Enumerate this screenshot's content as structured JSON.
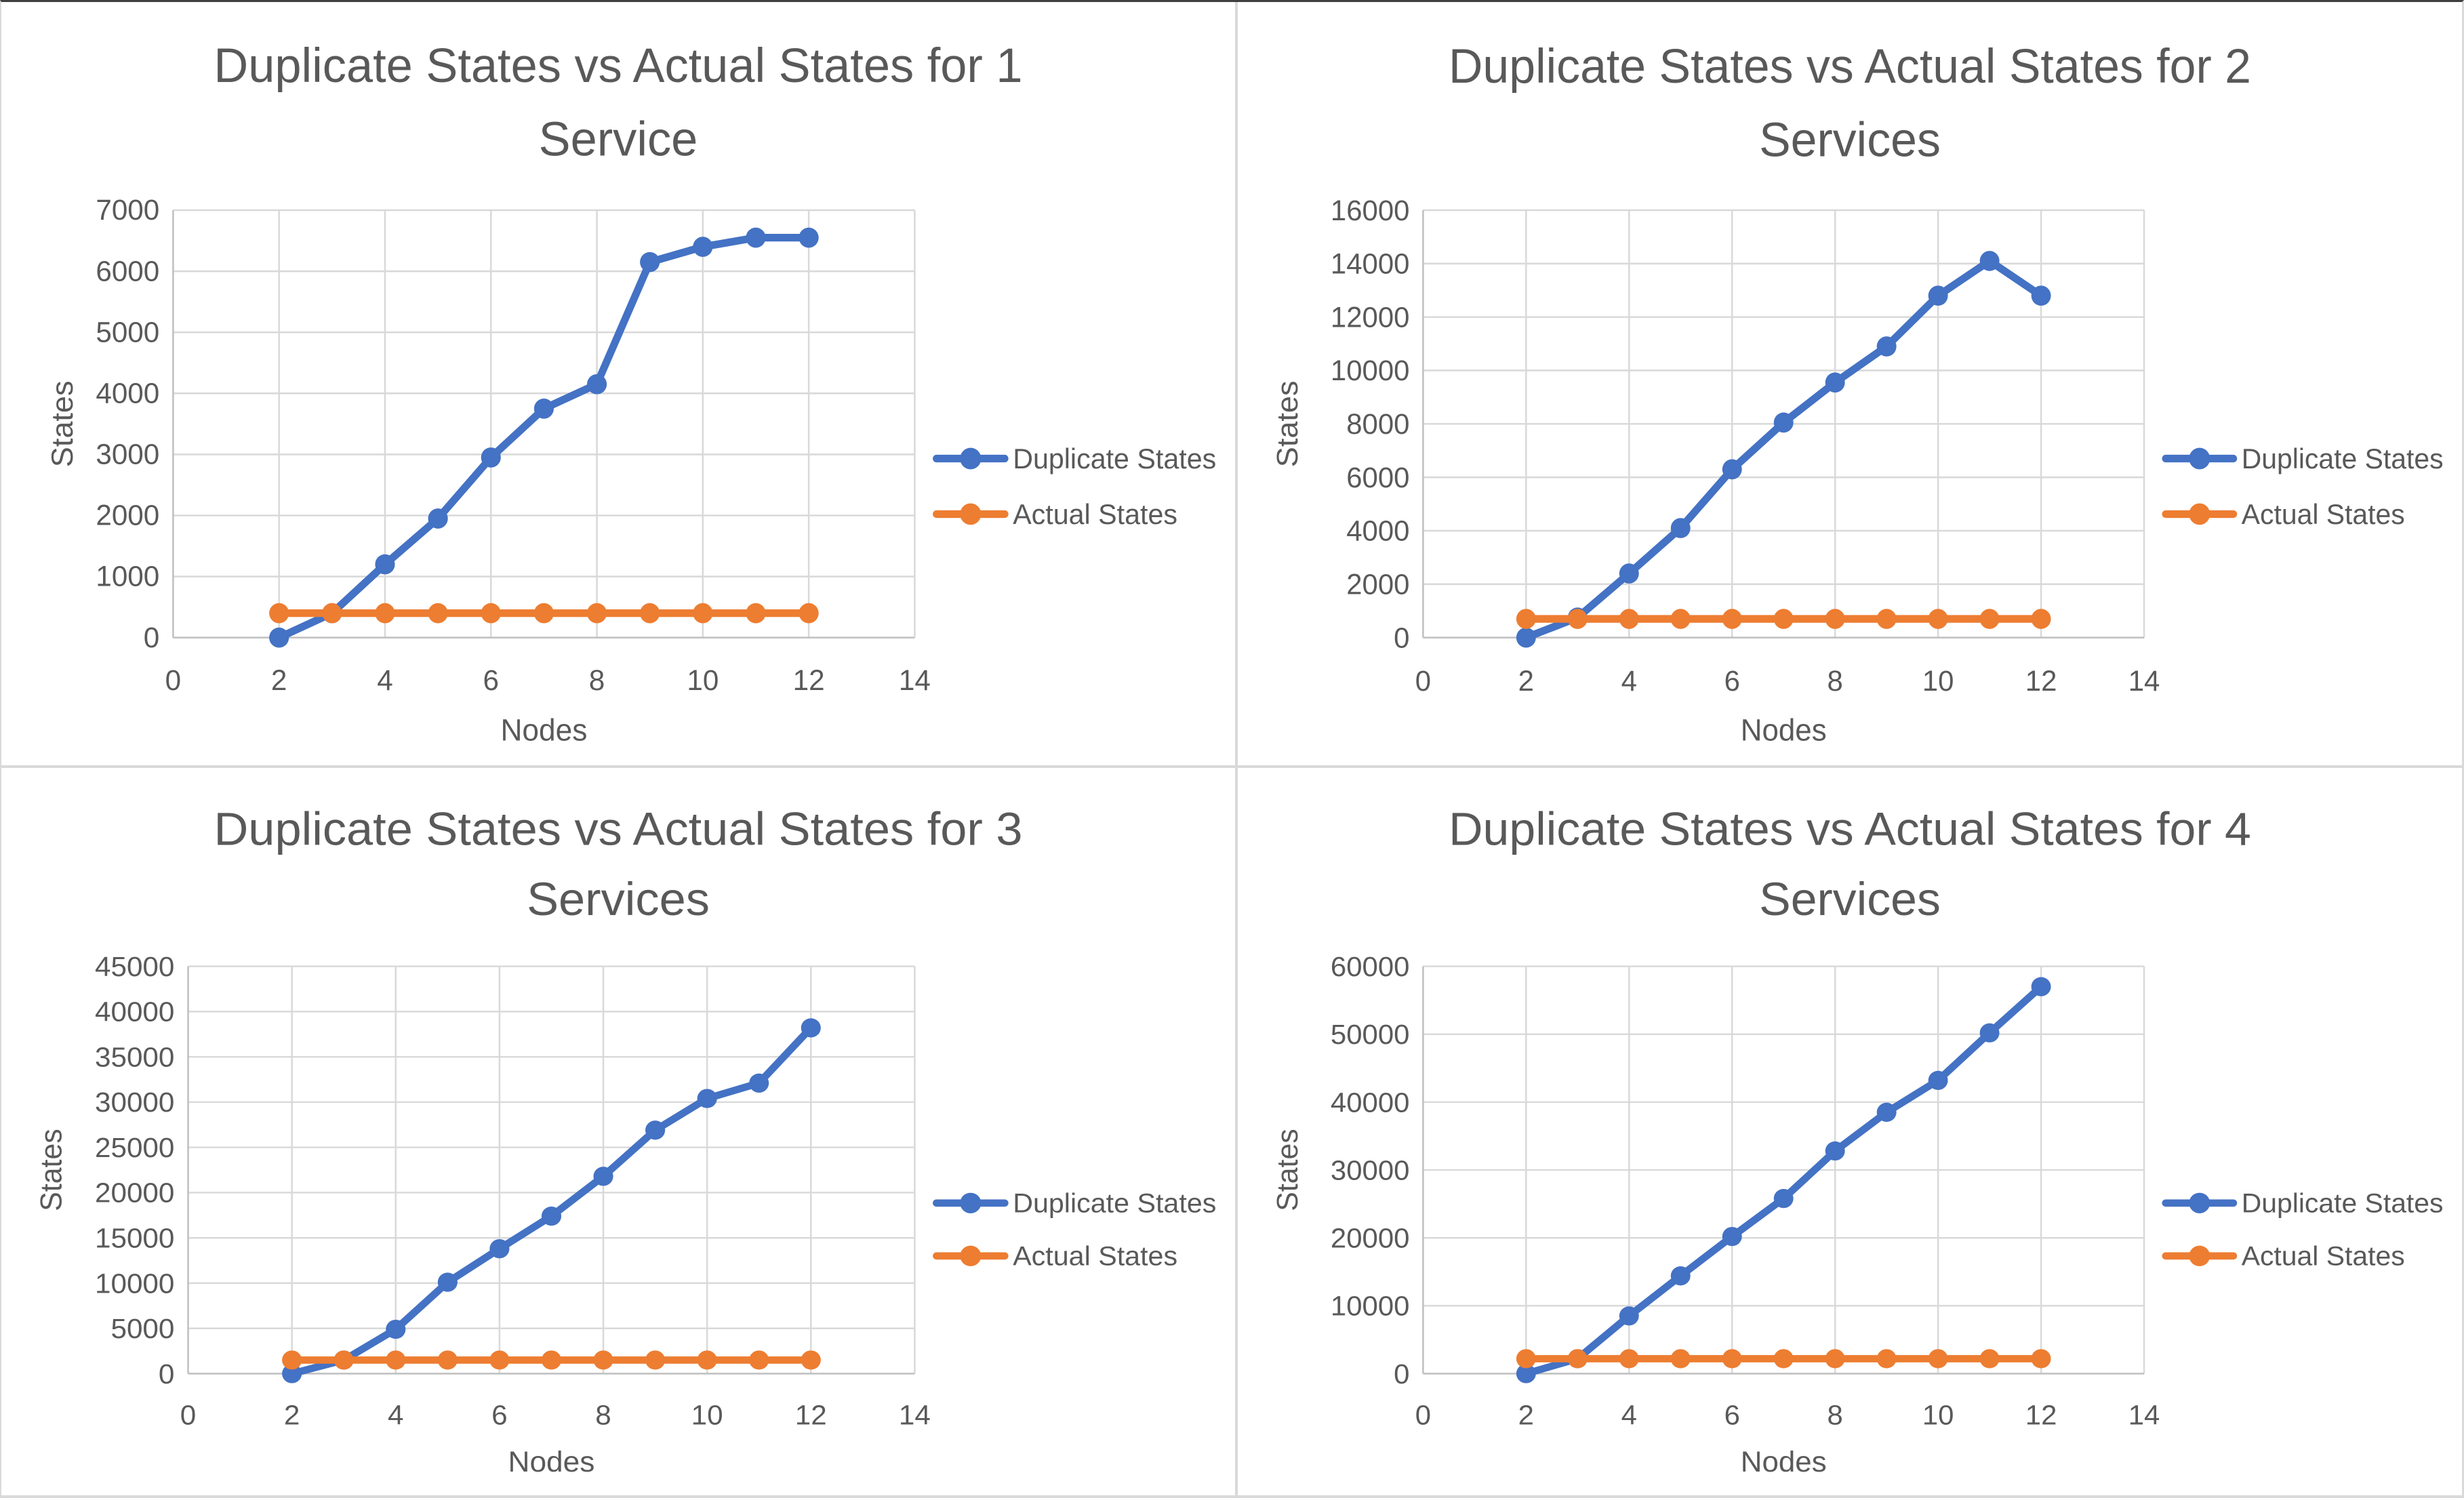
{
  "page": {
    "description": "Four line charts comparing duplicate states and actual states versus node count for 1-4 services"
  },
  "colors": {
    "duplicate_series": "#4472C4",
    "actual_series": "#ED7D31",
    "text": "#595959",
    "gridline": "#D9D9D9",
    "axis_line": "#BFBFBF",
    "background": "#FFFFFF"
  },
  "chart_data": [
    {
      "type": "line",
      "title": "Duplicate States vs Actual States for 1 Service",
      "title_lines": [
        "Duplicate States vs Actual States for 1",
        "Service"
      ],
      "xlabel": "Nodes",
      "ylabel": "States",
      "x": [
        2,
        3,
        4,
        5,
        6,
        7,
        8,
        9,
        10,
        11,
        12
      ],
      "series": [
        {
          "name": "Duplicate States",
          "color": "#4472C4",
          "values": [
            0,
            400,
            1200,
            1950,
            2950,
            3750,
            4150,
            6150,
            6400,
            6550,
            6550
          ]
        },
        {
          "name": "Actual States",
          "color": "#ED7D31",
          "values": [
            400,
            400,
            400,
            400,
            400,
            400,
            400,
            400,
            400,
            400,
            400
          ]
        }
      ],
      "xlim": [
        0,
        14
      ],
      "ylim": [
        0,
        7000
      ],
      "x_ticks": [
        0,
        2,
        4,
        6,
        8,
        10,
        12,
        14
      ],
      "y_ticks": [
        0,
        1000,
        2000,
        3000,
        4000,
        5000,
        6000,
        7000
      ],
      "grid": true,
      "legend_position": "right",
      "markers": true
    },
    {
      "type": "line",
      "title": "Duplicate States vs Actual States for 2 Services",
      "title_lines": [
        "Duplicate States vs Actual States for 2",
        "Services"
      ],
      "xlabel": "Nodes",
      "ylabel": "States",
      "x": [
        2,
        3,
        4,
        5,
        6,
        7,
        8,
        9,
        10,
        11,
        12
      ],
      "series": [
        {
          "name": "Duplicate States",
          "color": "#4472C4",
          "values": [
            0,
            750,
            2400,
            4100,
            6300,
            8050,
            9550,
            10900,
            12800,
            14100,
            12800
          ]
        },
        {
          "name": "Actual States",
          "color": "#ED7D31",
          "values": [
            700,
            700,
            700,
            700,
            700,
            700,
            700,
            700,
            700,
            700,
            700
          ]
        }
      ],
      "xlim": [
        0,
        14
      ],
      "ylim": [
        0,
        16000
      ],
      "x_ticks": [
        0,
        2,
        4,
        6,
        8,
        10,
        12,
        14
      ],
      "y_ticks": [
        0,
        2000,
        4000,
        6000,
        8000,
        10000,
        12000,
        14000,
        16000
      ],
      "grid": true,
      "legend_position": "right",
      "markers": true
    },
    {
      "type": "line",
      "title": "Duplicate States vs Actual States for 3 Services",
      "title_lines": [
        "Duplicate States vs Actual States for 3",
        "Services"
      ],
      "xlabel": "Nodes",
      "ylabel": "States",
      "x": [
        2,
        3,
        4,
        5,
        6,
        7,
        8,
        9,
        10,
        11,
        12
      ],
      "series": [
        {
          "name": "Duplicate States",
          "color": "#4472C4",
          "values": [
            0,
            1500,
            4900,
            10100,
            13800,
            17400,
            21800,
            26900,
            30400,
            32100,
            38200
          ]
        },
        {
          "name": "Actual States",
          "color": "#ED7D31",
          "values": [
            1500,
            1500,
            1500,
            1500,
            1500,
            1500,
            1500,
            1500,
            1500,
            1500,
            1500
          ]
        }
      ],
      "xlim": [
        0,
        14
      ],
      "ylim": [
        0,
        45000
      ],
      "x_ticks": [
        0,
        2,
        4,
        6,
        8,
        10,
        12,
        14
      ],
      "y_ticks": [
        0,
        5000,
        10000,
        15000,
        20000,
        25000,
        30000,
        35000,
        40000,
        45000
      ],
      "grid": true,
      "legend_position": "right",
      "markers": true
    },
    {
      "type": "line",
      "title": "Duplicate States vs Actual States for 4 Services",
      "title_lines": [
        "Duplicate States vs Actual States for 4",
        "Services"
      ],
      "xlabel": "Nodes",
      "ylabel": "States",
      "x": [
        2,
        3,
        4,
        5,
        6,
        7,
        8,
        9,
        10,
        11,
        12
      ],
      "series": [
        {
          "name": "Duplicate States",
          "color": "#4472C4",
          "values": [
            0,
            2200,
            8500,
            14400,
            20200,
            25800,
            32800,
            38500,
            43200,
            50200,
            57000
          ]
        },
        {
          "name": "Actual States",
          "color": "#ED7D31",
          "values": [
            2200,
            2200,
            2200,
            2200,
            2200,
            2200,
            2200,
            2200,
            2200,
            2200,
            2200
          ]
        }
      ],
      "xlim": [
        0,
        14
      ],
      "ylim": [
        0,
        60000
      ],
      "x_ticks": [
        0,
        2,
        4,
        6,
        8,
        10,
        12,
        14
      ],
      "y_ticks": [
        0,
        10000,
        20000,
        30000,
        40000,
        50000,
        60000
      ],
      "grid": true,
      "legend_position": "right",
      "markers": true
    }
  ]
}
